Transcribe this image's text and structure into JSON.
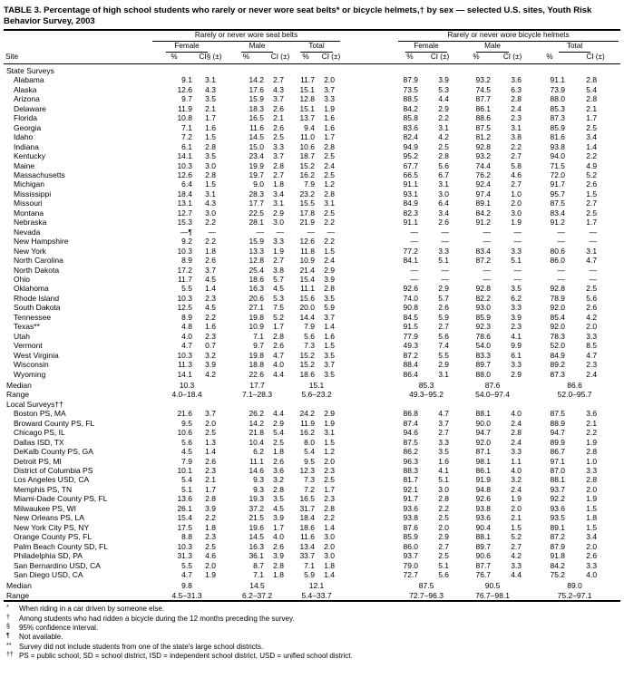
{
  "title": "TABLE 3. Percentage of high school students who rarely or never wore seat belts* or bicycle helmets,† by sex — selected U.S. sites, Youth Risk Behavior Survey, 2003",
  "header": {
    "site": "Site",
    "groups": [
      "Rarely or never wore seat belts",
      "Rarely or never wore bicycle helmets"
    ],
    "subgroups": [
      "Female",
      "Male",
      "Total"
    ],
    "pct": "%",
    "ci_first": "CI§ (±)",
    "ci": "CI (±)"
  },
  "labels": {
    "median": "Median",
    "range": "Range"
  },
  "sections": [
    {
      "name": "State Surveys",
      "rows": [
        {
          "site": "Alabama",
          "values": [
            "9.1",
            "3.1",
            "14.2",
            "2.7",
            "11.7",
            "2.0",
            "87.9",
            "3.9",
            "93.2",
            "3.6",
            "91.1",
            "2.8"
          ]
        },
        {
          "site": "Alaska",
          "values": [
            "12.6",
            "4.3",
            "17.6",
            "4.3",
            "15.1",
            "3.7",
            "73.5",
            "5.3",
            "74.5",
            "6.3",
            "73.9",
            "5.4"
          ]
        },
        {
          "site": "Arizona",
          "values": [
            "9.7",
            "3.5",
            "15.9",
            "3.7",
            "12.8",
            "3.3",
            "88.5",
            "4.4",
            "87.7",
            "2.8",
            "88.0",
            "2.8"
          ]
        },
        {
          "site": "Delaware",
          "values": [
            "11.9",
            "2.1",
            "18.3",
            "2.6",
            "15.1",
            "1.9",
            "84.2",
            "2.9",
            "86.1",
            "2.4",
            "85.3",
            "2.1"
          ]
        },
        {
          "site": "Florida",
          "values": [
            "10.8",
            "1.7",
            "16.5",
            "2.1",
            "13.7",
            "1.6",
            "85.8",
            "2.2",
            "88.6",
            "2.3",
            "87.3",
            "1.7"
          ]
        },
        {
          "site": "Georgia",
          "values": [
            "7.1",
            "1.6",
            "11.6",
            "2.6",
            "9.4",
            "1.6",
            "83.6",
            "3.1",
            "87.5",
            "3.1",
            "85.9",
            "2.5"
          ]
        },
        {
          "site": "Idaho",
          "values": [
            "7.2",
            "1.5",
            "14.5",
            "2.5",
            "11.0",
            "1.7",
            "82.4",
            "4.2",
            "81.2",
            "3.8",
            "81.6",
            "3.4"
          ]
        },
        {
          "site": "Indiana",
          "values": [
            "6.1",
            "2.8",
            "15.0",
            "3.3",
            "10.6",
            "2.8",
            "94.9",
            "2.5",
            "92.8",
            "2.2",
            "93.8",
            "1.4"
          ]
        },
        {
          "site": "Kentucky",
          "values": [
            "14.1",
            "3.5",
            "23.4",
            "3.7",
            "18.7",
            "2.5",
            "95.2",
            "2.8",
            "93.2",
            "2.7",
            "94.0",
            "2.2"
          ]
        },
        {
          "site": "Maine",
          "values": [
            "10.3",
            "3.0",
            "19.9",
            "2.8",
            "15.2",
            "2.4",
            "67.7",
            "5.6",
            "74.4",
            "5.8",
            "71.5",
            "4.9"
          ]
        },
        {
          "site": "Massachusetts",
          "values": [
            "12.6",
            "2.8",
            "19.7",
            "2.7",
            "16.2",
            "2.5",
            "66.5",
            "6.7",
            "76.2",
            "4.6",
            "72.0",
            "5.2"
          ]
        },
        {
          "site": "Michigan",
          "values": [
            "6.4",
            "1.5",
            "9.0",
            "1.8",
            "7.9",
            "1.2",
            "91.1",
            "3.1",
            "92.4",
            "2.7",
            "91.7",
            "2.6"
          ]
        },
        {
          "site": "Mississippi",
          "values": [
            "18.4",
            "3.1",
            "28.3",
            "3.4",
            "23.2",
            "2.8",
            "93.1",
            "3.0",
            "97.4",
            "1.0",
            "95.7",
            "1.5"
          ]
        },
        {
          "site": "Missouri",
          "values": [
            "13.1",
            "4.3",
            "17.7",
            "3.1",
            "15.5",
            "3.1",
            "84.9",
            "6.4",
            "89.1",
            "2.0",
            "87.5",
            "2.7"
          ]
        },
        {
          "site": "Montana",
          "values": [
            "12.7",
            "3.0",
            "22.5",
            "2.9",
            "17.8",
            "2.5",
            "82.3",
            "3.4",
            "84.2",
            "3.0",
            "83.4",
            "2.5"
          ]
        },
        {
          "site": "Nebraska",
          "values": [
            "15.3",
            "2.2",
            "28.1",
            "3.0",
            "21.9",
            "2.2",
            "91.1",
            "2.6",
            "91.2",
            "1.9",
            "91.2",
            "1.7"
          ]
        },
        {
          "site": "Nevada",
          "values": [
            "—¶",
            "—",
            "—",
            "—",
            "—",
            "—",
            "—",
            "—",
            "—",
            "—",
            "—",
            "—"
          ]
        },
        {
          "site": "New Hampshire",
          "values": [
            "9.2",
            "2.2",
            "15.9",
            "3.3",
            "12.6",
            "2.2",
            "—",
            "—",
            "—",
            "—",
            "—",
            "—"
          ]
        },
        {
          "site": "New York",
          "values": [
            "10.3",
            "1.8",
            "13.3",
            "1.9",
            "11.8",
            "1.5",
            "77.2",
            "3.3",
            "83.4",
            "3.3",
            "80.6",
            "3.1"
          ]
        },
        {
          "site": "North Carolina",
          "values": [
            "8.9",
            "2.6",
            "12.8",
            "2.7",
            "10.9",
            "2.4",
            "84.1",
            "5.1",
            "87.2",
            "5.1",
            "86.0",
            "4.7"
          ]
        },
        {
          "site": "North Dakota",
          "values": [
            "17.2",
            "3.7",
            "25.4",
            "3.8",
            "21.4",
            "2.9",
            "—",
            "—",
            "—",
            "—",
            "—",
            "—"
          ]
        },
        {
          "site": "Ohio",
          "values": [
            "11.7",
            "4.5",
            "18.6",
            "5.7",
            "15.4",
            "3.9",
            "—",
            "—",
            "—",
            "—",
            "—",
            "—"
          ]
        },
        {
          "site": "Oklahoma",
          "values": [
            "5.5",
            "1.4",
            "16.3",
            "4.5",
            "11.1",
            "2.8",
            "92.6",
            "2.9",
            "92.8",
            "3.5",
            "92.8",
            "2.5"
          ]
        },
        {
          "site": "Rhode Island",
          "values": [
            "10.3",
            "2.3",
            "20.6",
            "5.3",
            "15.6",
            "3.5",
            "74.0",
            "5.7",
            "82.2",
            "6.2",
            "78.9",
            "5.6"
          ]
        },
        {
          "site": "South Dakota",
          "values": [
            "12.5",
            "4.5",
            "27.1",
            "7.5",
            "20.0",
            "5.9",
            "90.8",
            "2.6",
            "93.0",
            "3.3",
            "92.0",
            "2.6"
          ]
        },
        {
          "site": "Tennessee",
          "values": [
            "8.9",
            "2.2",
            "19.8",
            "5.2",
            "14.4",
            "3.7",
            "84.5",
            "5.9",
            "85.9",
            "3.9",
            "85.4",
            "4.2"
          ]
        },
        {
          "site": "Texas**",
          "values": [
            "4.8",
            "1.6",
            "10.9",
            "1.7",
            "7.9",
            "1.4",
            "91.5",
            "2.7",
            "92.3",
            "2.3",
            "92.0",
            "2.0"
          ]
        },
        {
          "site": "Utah",
          "values": [
            "4.0",
            "2.3",
            "7.1",
            "2.8",
            "5.6",
            "1.6",
            "77.9",
            "5.6",
            "78.6",
            "4.1",
            "78.3",
            "3.3"
          ]
        },
        {
          "site": "Vermont",
          "values": [
            "4.7",
            "0.7",
            "9.7",
            "2.6",
            "7.3",
            "1.5",
            "49.3",
            "7.4",
            "54.0",
            "9.9",
            "52.0",
            "8.5"
          ]
        },
        {
          "site": "West Virginia",
          "values": [
            "10.3",
            "3.2",
            "19.8",
            "4.7",
            "15.2",
            "3.5",
            "87.2",
            "5.5",
            "83.3",
            "6.1",
            "84.9",
            "4.7"
          ]
        },
        {
          "site": "Wisconsin",
          "values": [
            "11.3",
            "3.9",
            "18.8",
            "4.0",
            "15.2",
            "3.7",
            "88.4",
            "2.9",
            "89.7",
            "3.3",
            "89.2",
            "2.3"
          ]
        },
        {
          "site": "Wyoming",
          "values": [
            "14.1",
            "4.2",
            "22.6",
            "4.4",
            "18.6",
            "3.5",
            "86.4",
            "3.1",
            "88.0",
            "2.9",
            "87.3",
            "2.4"
          ]
        }
      ],
      "median": [
        "10.3",
        "17.7",
        "15.1",
        "85.3",
        "87.6",
        "86.6"
      ],
      "range": [
        "4.0–18.4",
        "7.1–28.3",
        "5.6–23.2",
        "49.3–95.2",
        "54.0–97.4",
        "52.0–95.7"
      ]
    },
    {
      "name": "Local Surveys††",
      "rows": [
        {
          "site": "Boston PS, MA",
          "values": [
            "21.6",
            "3.7",
            "26.2",
            "4.4",
            "24.2",
            "2.9",
            "86.8",
            "4.7",
            "88.1",
            "4.0",
            "87.5",
            "3.6"
          ]
        },
        {
          "site": "Broward County PS, FL",
          "values": [
            "9.5",
            "2.0",
            "14.2",
            "2.9",
            "11.9",
            "1.9",
            "87.4",
            "3.7",
            "90.0",
            "2.4",
            "88.9",
            "2.1"
          ]
        },
        {
          "site": "Chicago PS, IL",
          "values": [
            "10.6",
            "2.5",
            "21.8",
            "5.4",
            "16.2",
            "3.1",
            "94.6",
            "2.7",
            "94.7",
            "2.8",
            "94.7",
            "2.2"
          ]
        },
        {
          "site": "Dallas ISD, TX",
          "values": [
            "5.6",
            "1.3",
            "10.4",
            "2.5",
            "8.0",
            "1.5",
            "87.5",
            "3.3",
            "92.0",
            "2.4",
            "89.9",
            "1.9"
          ]
        },
        {
          "site": "DeKalb County PS, GA",
          "values": [
            "4.5",
            "1.4",
            "6.2",
            "1.8",
            "5.4",
            "1.2",
            "86.2",
            "3.5",
            "87.1",
            "3.3",
            "86.7",
            "2.8"
          ]
        },
        {
          "site": "Detroit PS, MI",
          "values": [
            "7.9",
            "2.6",
            "11.1",
            "2.6",
            "9.5",
            "2.0",
            "96.3",
            "1.6",
            "98.1",
            "1.1",
            "97.1",
            "1.0"
          ]
        },
        {
          "site": "District of Columbia PS",
          "values": [
            "10.1",
            "2.3",
            "14.6",
            "3.6",
            "12.3",
            "2.3",
            "88.3",
            "4.1",
            "86.1",
            "4.0",
            "87.0",
            "3.3"
          ]
        },
        {
          "site": "Los Angeles USD, CA",
          "values": [
            "5.4",
            "2.1",
            "9.3",
            "3.2",
            "7.3",
            "2.5",
            "81.7",
            "5.1",
            "91.9",
            "3.2",
            "88.1",
            "2.8"
          ]
        },
        {
          "site": "Memphis PS, TN",
          "values": [
            "5.1",
            "1.7",
            "9.3",
            "2.8",
            "7.2",
            "1.7",
            "92.1",
            "3.0",
            "94.8",
            "2.4",
            "93.7",
            "2.0"
          ]
        },
        {
          "site": "Miami-Dade County PS, FL",
          "values": [
            "13.6",
            "2.8",
            "19.3",
            "3.5",
            "16.5",
            "2.3",
            "91.7",
            "2.8",
            "92.6",
            "1.9",
            "92.2",
            "1.9"
          ]
        },
        {
          "site": "Milwaukee PS, WI",
          "values": [
            "26.1",
            "3.9",
            "37.2",
            "4.5",
            "31.7",
            "2.8",
            "93.6",
            "2.2",
            "93.8",
            "2.0",
            "93.6",
            "1.5"
          ]
        },
        {
          "site": "New Orleans PS, LA",
          "values": [
            "15.4",
            "2.2",
            "21.5",
            "3.9",
            "18.4",
            "2.2",
            "93.8",
            "2.5",
            "93.6",
            "2.1",
            "93.5",
            "1.8"
          ]
        },
        {
          "site": "New York City PS, NY",
          "values": [
            "17.5",
            "1.8",
            "19.6",
            "1.7",
            "18.6",
            "1.4",
            "87.6",
            "2.0",
            "90.4",
            "1.5",
            "89.1",
            "1.5"
          ]
        },
        {
          "site": "Orange County PS, FL",
          "values": [
            "8.8",
            "2.3",
            "14.5",
            "4.0",
            "11.6",
            "3.0",
            "85.9",
            "2.9",
            "88.1",
            "5.2",
            "87.2",
            "3.4"
          ]
        },
        {
          "site": "Palm Beach County SD, FL",
          "values": [
            "10.3",
            "2.5",
            "16.3",
            "2.6",
            "13.4",
            "2.0",
            "86.0",
            "2.7",
            "89.7",
            "2.7",
            "87.9",
            "2.0"
          ]
        },
        {
          "site": "Philadelphia SD, PA",
          "values": [
            "31.3",
            "4.6",
            "36.1",
            "3.9",
            "33.7",
            "3.0",
            "93.7",
            "2.5",
            "90.6",
            "4.2",
            "91.8",
            "2.6"
          ]
        },
        {
          "site": "San Bernardino USD, CA",
          "values": [
            "5.5",
            "2.0",
            "8.7",
            "2.8",
            "7.1",
            "1.8",
            "79.0",
            "5.1",
            "87.7",
            "3.3",
            "84.2",
            "3.3"
          ]
        },
        {
          "site": "San Diego USD, CA",
          "values": [
            "4.7",
            "1.9",
            "7.1",
            "1.8",
            "5.9",
            "1.4",
            "72.7",
            "5.6",
            "76.7",
            "4.4",
            "75.2",
            "4.0"
          ]
        }
      ],
      "median": [
        "9.8",
        "14.5",
        "12.1",
        "87.5",
        "90.5",
        "89.0"
      ],
      "range": [
        "4.5–31.3",
        "6.2–37.2",
        "5.4–33.7",
        "72.7–96.3",
        "76.7–98.1",
        "75.2–97.1"
      ]
    }
  ],
  "footnotes": [
    {
      "symbol": "*",
      "text": "When riding in a car driven by someone else."
    },
    {
      "symbol": "†",
      "text": "Among students who had ridden a bicycle during the 12 months preceding the survey."
    },
    {
      "symbol": "§",
      "text": "95% confidence interval."
    },
    {
      "symbol": "¶",
      "text": "Not available."
    },
    {
      "symbol": "**",
      "text": "Survey did not include students from one of the state's large school districts."
    },
    {
      "symbol": "††",
      "text": "PS = public school, SD = school district, ISD = independent school district, USD = unified school district."
    }
  ]
}
